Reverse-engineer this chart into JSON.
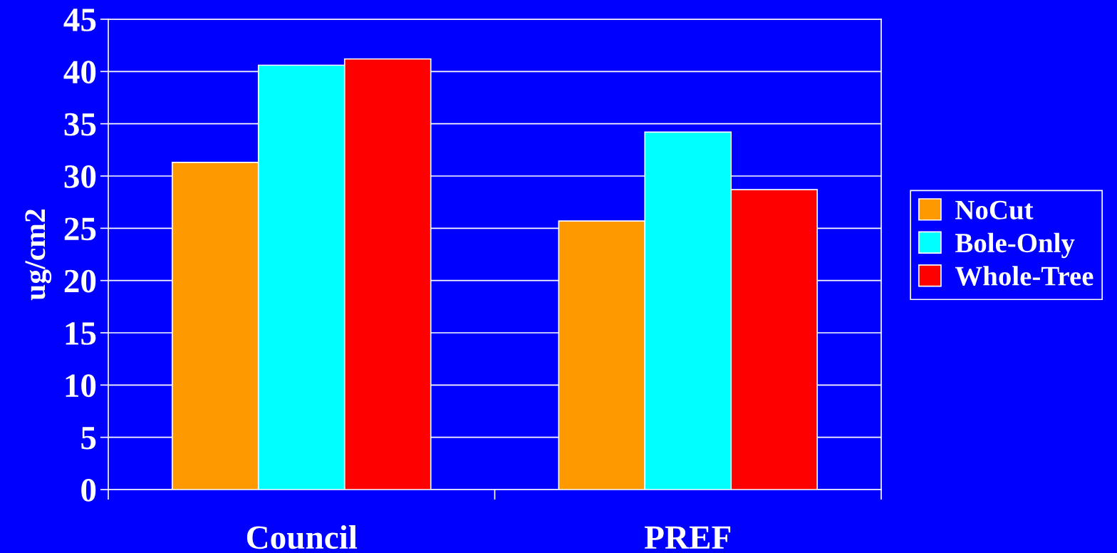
{
  "chart_data": {
    "type": "bar",
    "ylabel": "ug/cm2",
    "categories": [
      "Council",
      "PREF"
    ],
    "series": [
      {
        "name": "NoCut",
        "color": "#ff9900",
        "values": [
          31.3,
          25.7
        ]
      },
      {
        "name": "Bole-Only",
        "color": "#00ffff",
        "values": [
          40.6,
          34.2
        ]
      },
      {
        "name": "Whole-Tree",
        "color": "#ff0000",
        "values": [
          41.2,
          28.7
        ]
      }
    ],
    "ylim": [
      0,
      45
    ],
    "yticks": [
      0,
      5,
      10,
      15,
      20,
      25,
      30,
      35,
      40,
      45
    ],
    "grid": "y",
    "legend": "right"
  }
}
